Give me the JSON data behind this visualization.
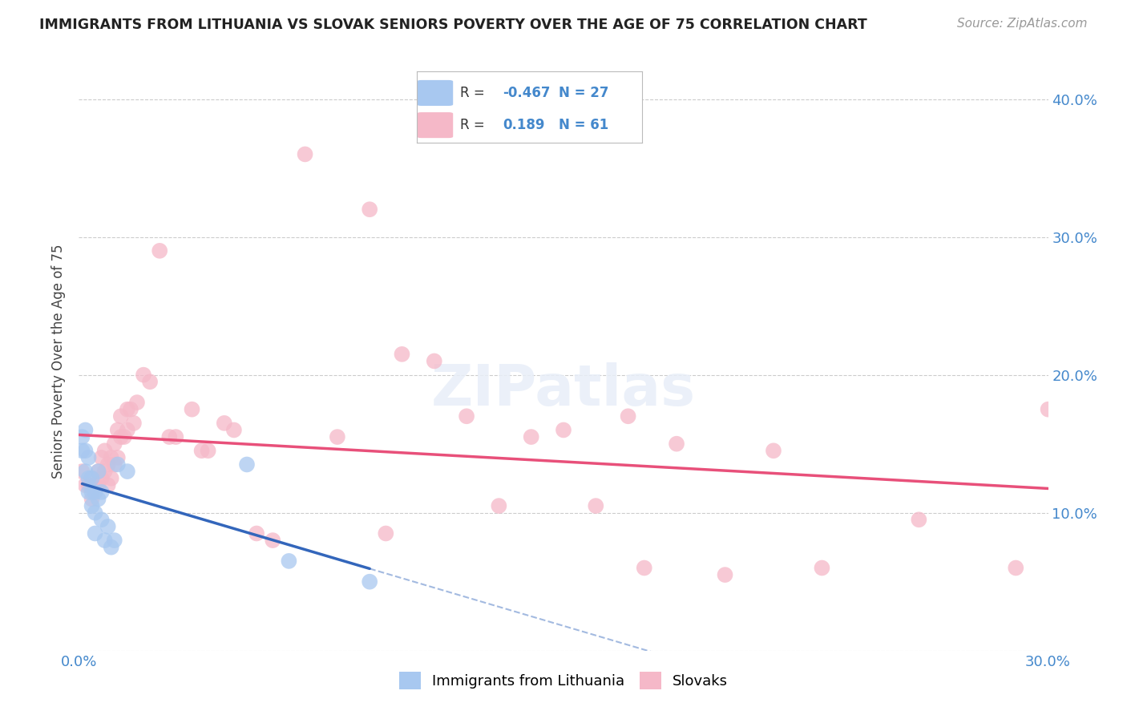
{
  "title": "IMMIGRANTS FROM LITHUANIA VS SLOVAK SENIORS POVERTY OVER THE AGE OF 75 CORRELATION CHART",
  "source": "Source: ZipAtlas.com",
  "ylabel": "Seniors Poverty Over the Age of 75",
  "xlim": [
    0.0,
    0.3
  ],
  "ylim": [
    0.0,
    0.42
  ],
  "xticks": [
    0.0,
    0.05,
    0.1,
    0.15,
    0.2,
    0.25,
    0.3
  ],
  "yticks": [
    0.0,
    0.1,
    0.2,
    0.3,
    0.4
  ],
  "xtick_labels": [
    "0.0%",
    "",
    "",
    "",
    "",
    "",
    "30.0%"
  ],
  "ytick_labels": [
    "",
    "10.0%",
    "20.0%",
    "30.0%",
    "40.0%"
  ],
  "blue_R": "-0.467",
  "blue_N": "27",
  "pink_R": "0.189",
  "pink_N": "61",
  "blue_color": "#A8C8F0",
  "pink_color": "#F5B8C8",
  "blue_line_color": "#3366BB",
  "pink_line_color": "#E8507A",
  "grid_color": "#CCCCCC",
  "background_color": "#FFFFFF",
  "blue_x": [
    0.001,
    0.001,
    0.002,
    0.002,
    0.002,
    0.003,
    0.003,
    0.003,
    0.004,
    0.004,
    0.004,
    0.005,
    0.005,
    0.005,
    0.006,
    0.006,
    0.007,
    0.007,
    0.008,
    0.009,
    0.01,
    0.011,
    0.012,
    0.015,
    0.052,
    0.065,
    0.09
  ],
  "blue_y": [
    0.155,
    0.145,
    0.16,
    0.145,
    0.13,
    0.14,
    0.125,
    0.115,
    0.125,
    0.115,
    0.105,
    0.115,
    0.1,
    0.085,
    0.13,
    0.11,
    0.115,
    0.095,
    0.08,
    0.09,
    0.075,
    0.08,
    0.135,
    0.13,
    0.135,
    0.065,
    0.05
  ],
  "pink_x": [
    0.001,
    0.002,
    0.003,
    0.004,
    0.004,
    0.005,
    0.005,
    0.006,
    0.006,
    0.007,
    0.007,
    0.008,
    0.008,
    0.009,
    0.009,
    0.01,
    0.01,
    0.011,
    0.011,
    0.012,
    0.012,
    0.013,
    0.013,
    0.014,
    0.015,
    0.015,
    0.016,
    0.017,
    0.018,
    0.02,
    0.022,
    0.025,
    0.028,
    0.03,
    0.035,
    0.038,
    0.04,
    0.045,
    0.048,
    0.055,
    0.06,
    0.07,
    0.08,
    0.09,
    0.095,
    0.1,
    0.11,
    0.12,
    0.13,
    0.14,
    0.15,
    0.16,
    0.17,
    0.175,
    0.185,
    0.2,
    0.215,
    0.23,
    0.26,
    0.29,
    0.3
  ],
  "pink_y": [
    0.13,
    0.12,
    0.12,
    0.11,
    0.125,
    0.115,
    0.12,
    0.12,
    0.13,
    0.125,
    0.14,
    0.13,
    0.145,
    0.12,
    0.135,
    0.125,
    0.14,
    0.135,
    0.15,
    0.14,
    0.16,
    0.155,
    0.17,
    0.155,
    0.16,
    0.175,
    0.175,
    0.165,
    0.18,
    0.2,
    0.195,
    0.29,
    0.155,
    0.155,
    0.175,
    0.145,
    0.145,
    0.165,
    0.16,
    0.085,
    0.08,
    0.36,
    0.155,
    0.32,
    0.085,
    0.215,
    0.21,
    0.17,
    0.105,
    0.155,
    0.16,
    0.105,
    0.17,
    0.06,
    0.15,
    0.055,
    0.145,
    0.06,
    0.095,
    0.06,
    0.175
  ],
  "watermark": "ZIPatlas",
  "legend_items": [
    {
      "color": "#A8C8F0",
      "r": "-0.467",
      "n": "27"
    },
    {
      "color": "#F5B8C8",
      "r": "0.189",
      "n": "61"
    }
  ]
}
